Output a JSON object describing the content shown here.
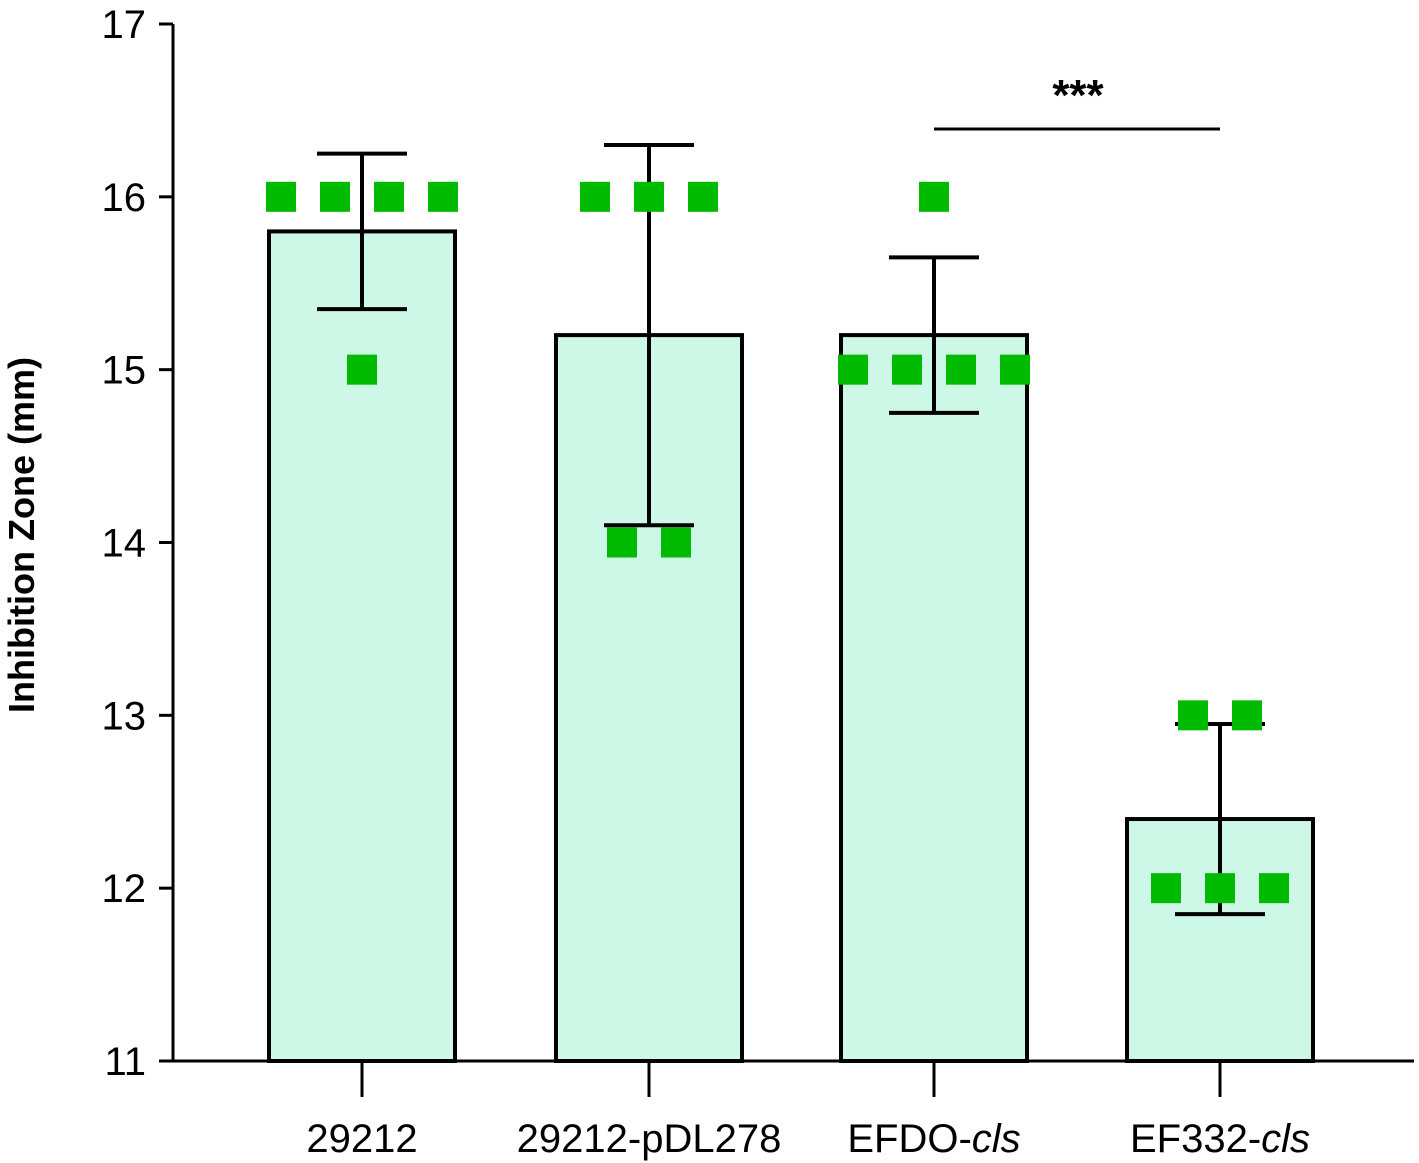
{
  "chart_data": {
    "type": "bar",
    "title": "",
    "xlabel": "",
    "ylabel": "Inhibition Zone (mm)",
    "ylim": [
      11,
      17
    ],
    "yticks": [
      "11",
      "12",
      "13",
      "14",
      "15",
      "16",
      "17"
    ],
    "grid": false,
    "categories": [
      {
        "prefix": "29212",
        "italic": ""
      },
      {
        "prefix": "29212-pDL278",
        "italic": ""
      },
      {
        "prefix": "EFDO-",
        "italic": "cls"
      },
      {
        "prefix": "EF332-",
        "italic": "cls"
      }
    ],
    "values": [
      15.8,
      15.2,
      15.2,
      12.4
    ],
    "error_upper": [
      16.25,
      16.3,
      15.65,
      12.95
    ],
    "error_lower": [
      15.35,
      14.1,
      14.75,
      11.85
    ],
    "points": [
      [
        16,
        16,
        16,
        16,
        15
      ],
      [
        16,
        16,
        16,
        14,
        14
      ],
      [
        16,
        15,
        15,
        15,
        15
      ],
      [
        13,
        13,
        12,
        12,
        12
      ]
    ],
    "significance": {
      "from": 2,
      "to": 3,
      "label": "***"
    },
    "colors": {
      "bar_fill": "#cdf7e6",
      "bar_stroke": "#000000",
      "point": "#00bb00",
      "axis": "#000000"
    }
  }
}
